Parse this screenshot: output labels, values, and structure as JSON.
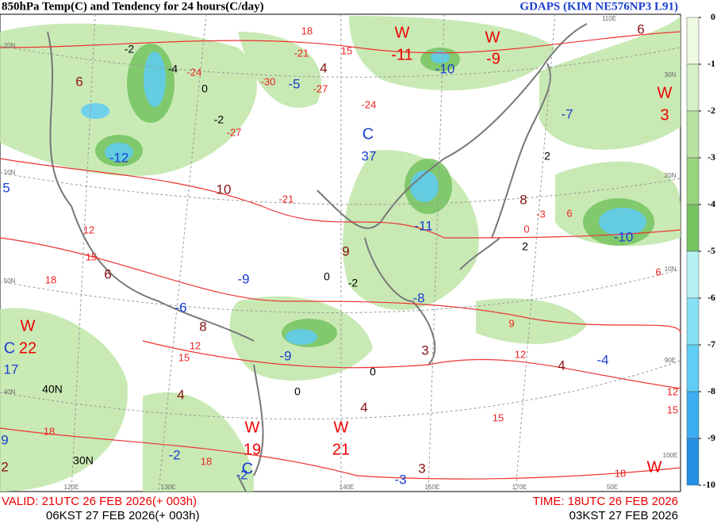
{
  "header": {
    "title": "850hPa Temp(C) and Tendency for 24 hours(C/day)",
    "model": "GDAPS (KIM NE576NP3 L91)"
  },
  "map_labels": [
    "W",
    "-11",
    "W",
    "-9",
    "W",
    "3",
    "W",
    "22",
    "W",
    "21",
    "W",
    "19",
    "W",
    "C",
    "37",
    "C",
    "17",
    "C",
    "-12",
    "-5",
    "-10",
    "-7",
    "-11",
    "-8",
    "-9",
    "-9",
    "-6",
    "-10",
    "-4",
    "-3",
    "-2",
    "-2",
    "5",
    "9",
    "6",
    "4",
    "10",
    "8",
    "6",
    "9",
    "8",
    "3",
    "4",
    "4",
    "4",
    "3",
    "2",
    "6",
    "18",
    "15",
    "-21",
    "-30",
    "-27",
    "-24",
    "-24",
    "-27",
    "-21",
    "-3",
    "0",
    "6",
    "6",
    "9",
    "12",
    "15",
    "18",
    "12",
    "15",
    "18",
    "15",
    "12",
    "18",
    "18",
    "12",
    "15",
    "-2",
    "-4",
    "-2",
    "0",
    "2",
    "2",
    "0",
    "0",
    "-2",
    "0",
    "40N",
    "30N",
    "20N",
    "10N",
    "50N",
    "40N",
    "30N",
    "20N",
    "10N",
    "90E",
    "100E",
    "120E",
    "130E",
    "140E",
    "150E",
    "170E",
    "50E",
    "110E"
  ],
  "colorbar": {
    "ticks": [
      0,
      -1,
      -2,
      -3,
      -4,
      -5,
      -6,
      -7,
      -8,
      -9,
      -10
    ],
    "colors": [
      "#effae3",
      "#d5f0c4",
      "#b8e3a2",
      "#99d47f",
      "#76c361",
      "#b5f1f3",
      "#86e1f5",
      "#5fcdf5",
      "#3badf0",
      "#2390e6"
    ]
  },
  "footer": {
    "valid_utc": "VALID: 21UTC 26 FEB 2026(+ 003h)",
    "valid_kst": "06KST 27 FEB 2026(+ 003h)",
    "time_utc": "TIME: 18UTC 26 FEB 2026",
    "time_kst": "03KST 27 FEB 2026"
  }
}
